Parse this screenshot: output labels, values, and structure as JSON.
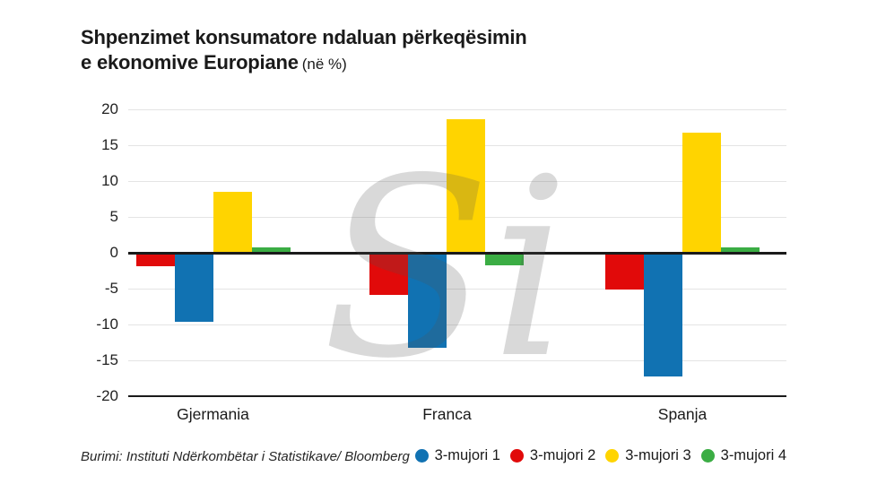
{
  "title": {
    "line1": "Shpenzimet konsumatore ndaluan përkeqësimin",
    "line2_bold": "e ekonomive Europiane",
    "line2_note": "(në %)"
  },
  "source": "Burimi: Instituti Ndërkombëtar i Statistikave/ Bloomberg",
  "watermark": {
    "text": "Si"
  },
  "colors": {
    "blue": "#1172B2",
    "red": "#E10A0A",
    "yellow": "#FFD400",
    "green": "#3BAD44",
    "axis": "#1A1A1A",
    "grid": "#E4E4E4",
    "watermark_gray": "#D9D9D9"
  },
  "chart_data": {
    "type": "bar",
    "title": "Shpenzimet konsumatore ndaluan përkeqësimin e ekonomive Europiane",
    "unit_note": "në %",
    "categories": [
      "Gjermania",
      "Franca",
      "Spanja"
    ],
    "series": [
      {
        "name": "3-mujori 1",
        "color": "#1172B2",
        "values": [
          -9.6,
          -13.2,
          -17.2
        ]
      },
      {
        "name": "3-mujori 2",
        "color": "#E10A0A",
        "values": [
          -1.9,
          -5.9,
          -5.1
        ]
      },
      {
        "name": "3-mujori 3",
        "color": "#FFD400",
        "values": [
          8.5,
          18.6,
          16.7
        ]
      },
      {
        "name": "3-mujori 4",
        "color": "#3BAD44",
        "values": [
          0.7,
          -1.7,
          0.7
        ]
      }
    ],
    "bar_order_in_group": [
      "3-mujori 2",
      "3-mujori 1",
      "3-mujori 3",
      "3-mujori 4"
    ],
    "yticks": [
      20,
      15,
      10,
      5,
      0,
      -5,
      -10,
      -15,
      -20
    ],
    "ylim": [
      -20,
      20
    ],
    "xlabel": "",
    "ylabel": "",
    "grid": true,
    "legend_position": "bottom-right"
  }
}
